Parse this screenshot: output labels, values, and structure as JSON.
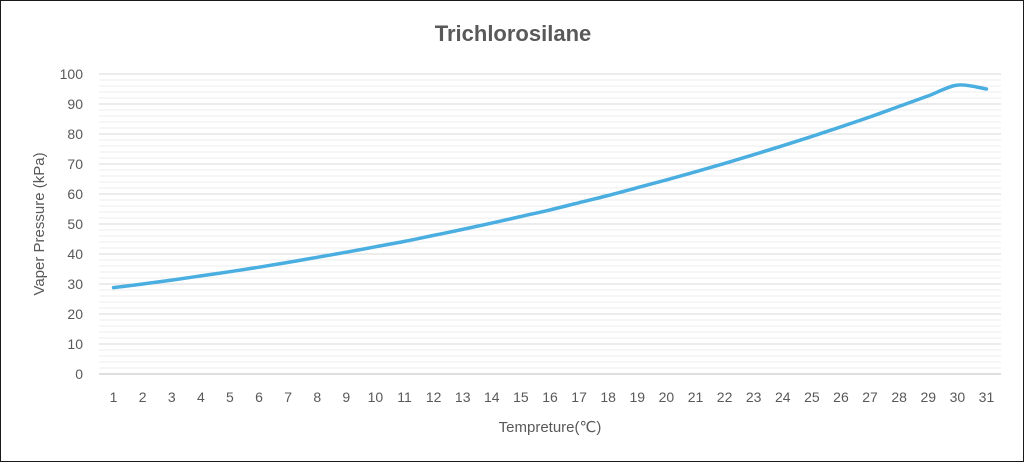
{
  "chart_data": {
    "type": "line",
    "title": "Trichlorosilane",
    "xlabel": "Tempreture(℃)",
    "ylabel": "Vaper Pressure (kPa)",
    "x": [
      1,
      2,
      3,
      4,
      5,
      6,
      7,
      8,
      9,
      10,
      11,
      12,
      13,
      14,
      15,
      16,
      17,
      18,
      19,
      20,
      21,
      22,
      23,
      24,
      25,
      26,
      27,
      28,
      29,
      30,
      31
    ],
    "series": [
      {
        "values": [
          28.8,
          30.0,
          31.3,
          32.7,
          34.1,
          35.6,
          37.2,
          38.9,
          40.6,
          42.4,
          44.2,
          46.2,
          48.2,
          50.3,
          52.5,
          54.7,
          57.1,
          59.5,
          62.1,
          64.7,
          67.4,
          70.2,
          73.1,
          76.1,
          79.2,
          82.4,
          85.7,
          89.2,
          92.7,
          96.3,
          95.0
        ],
        "color": "#4aaee0"
      }
    ],
    "ylim": [
      0,
      100
    ],
    "yticks": [
      "0",
      "10",
      "20",
      "30",
      "40",
      "50",
      "60",
      "70",
      "80",
      "90",
      "100"
    ],
    "grid": true,
    "legend": "none"
  }
}
